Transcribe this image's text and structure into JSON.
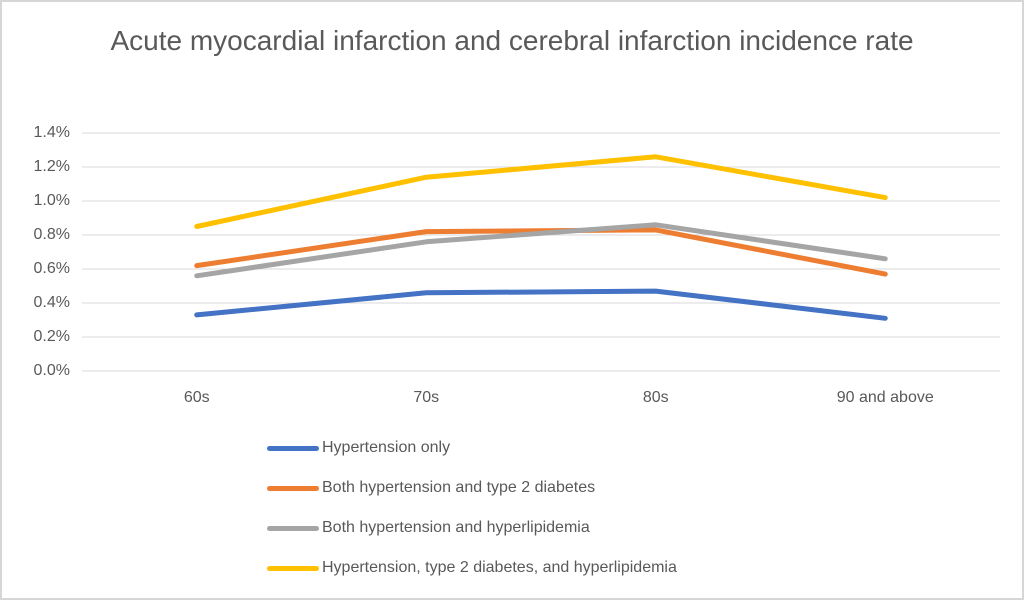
{
  "frame": {
    "background": "#ffffff",
    "border_color": "#d6d6d6"
  },
  "chart_data": {
    "type": "line",
    "title": "Acute myocardial infarction and cerebral infarction incidence rate",
    "categories": [
      "60s",
      "70s",
      "80s",
      "90 and above"
    ],
    "series": [
      {
        "name": "Hypertension only",
        "color": "#4472C4",
        "values": [
          0.33,
          0.46,
          0.47,
          0.31
        ]
      },
      {
        "name": "Both hypertension and type 2 diabetes",
        "color": "#ED7D31",
        "values": [
          0.62,
          0.82,
          0.83,
          0.57
        ]
      },
      {
        "name": "Both hypertension and hyperlipidemia",
        "color": "#A5A5A5",
        "values": [
          0.56,
          0.76,
          0.86,
          0.66
        ]
      },
      {
        "name": "Hypertension, type 2 diabetes, and hyperlipidemia",
        "color": "#FFC000",
        "values": [
          0.85,
          1.14,
          1.26,
          1.02
        ]
      }
    ],
    "y_ticks": [
      "1.4%",
      "1.2%",
      "1.0%",
      "0.8%",
      "0.6%",
      "0.4%",
      "0.2%",
      "0.0%"
    ],
    "ylim": [
      0.0,
      1.4
    ],
    "unit": "%",
    "grid": true,
    "gridline_color": "#D9D9D9",
    "text_color": "#595959",
    "legend_position": "bottom-left"
  }
}
